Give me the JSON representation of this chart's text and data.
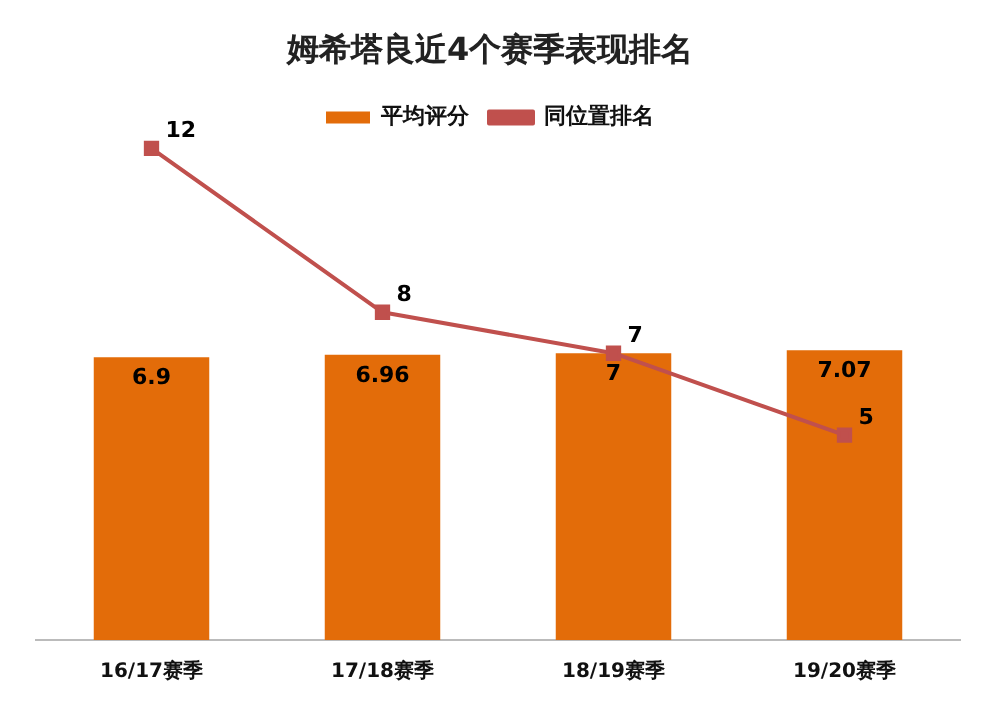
{
  "chart_data": {
    "type": "bar",
    "title": "姆希塔良近4个赛季表现排名",
    "categories": [
      "16/17赛季",
      "17/18赛季",
      "18/19赛季",
      "19/20赛季"
    ],
    "series": [
      {
        "name": "平均评分",
        "color": "#e36c09",
        "values": [
          6.9,
          6.96,
          7,
          7.07
        ]
      },
      {
        "name": "同位置排名",
        "type": "line",
        "color": "#c0504d",
        "values": [
          12,
          8,
          7,
          5
        ]
      }
    ],
    "tick_labels": "x",
    "grid": false,
    "legend": "top",
    "marker": "square",
    "data_labels": true
  }
}
